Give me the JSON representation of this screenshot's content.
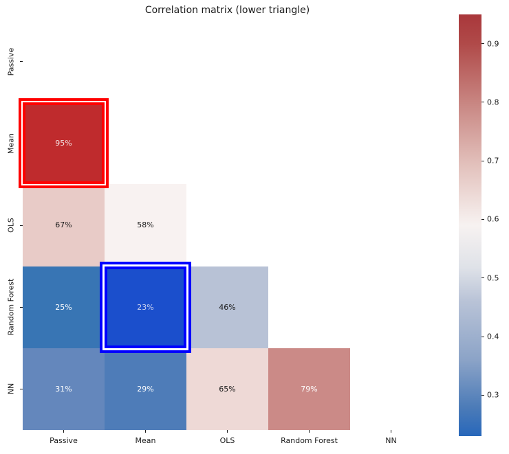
{
  "title": "Correlation matrix (lower triangle)",
  "colors": {
    "background": "#ffffff",
    "axis_text": "#1a1a1a",
    "tick_mark": "#1a1a1a",
    "highlight_max_box": "#ff0000",
    "highlight_min_box": "#0000ff"
  },
  "chart_data": {
    "type": "heatmap",
    "title": "Correlation matrix (lower triangle)",
    "categories": [
      "Passive",
      "Mean",
      "OLS",
      "Random Forest",
      "NN"
    ],
    "x_tick_labels": [
      "Passive",
      "Mean",
      "OLS",
      "Random Forest",
      "NN"
    ],
    "y_tick_labels": [
      "Passive",
      "Mean",
      "OLS",
      "Random Forest",
      "NN"
    ],
    "matrix_percent": [
      [
        null,
        null,
        null,
        null,
        null
      ],
      [
        95,
        null,
        null,
        null,
        null
      ],
      [
        67,
        58,
        null,
        null,
        null
      ],
      [
        25,
        23,
        46,
        null,
        null
      ],
      [
        31,
        29,
        65,
        79,
        null
      ]
    ],
    "cells": [
      {
        "row": 1,
        "col": 0,
        "row_label": "Mean",
        "col_label": "Passive",
        "label": "95%",
        "value": 0.95,
        "bg": "#bf2b2d",
        "fg": "#f3e2e2",
        "highlight": "red"
      },
      {
        "row": 2,
        "col": 0,
        "row_label": "OLS",
        "col_label": "Passive",
        "label": "67%",
        "value": 0.67,
        "bg": "#e8cbc7",
        "fg": "#1a1a1a",
        "highlight": null
      },
      {
        "row": 2,
        "col": 1,
        "row_label": "OLS",
        "col_label": "Mean",
        "label": "58%",
        "value": 0.58,
        "bg": "#f8f2f1",
        "fg": "#1a1a1a",
        "highlight": null
      },
      {
        "row": 3,
        "col": 0,
        "row_label": "Random Forest",
        "col_label": "Passive",
        "label": "25%",
        "value": 0.25,
        "bg": "#3875b4",
        "fg": "#ffffff",
        "highlight": null
      },
      {
        "row": 3,
        "col": 1,
        "row_label": "Random Forest",
        "col_label": "Mean",
        "label": "23%",
        "value": 0.23,
        "bg": "#1b4fcc",
        "fg": "#ccd3ef",
        "highlight": "blue"
      },
      {
        "row": 3,
        "col": 2,
        "row_label": "Random Forest",
        "col_label": "OLS",
        "label": "46%",
        "value": 0.46,
        "bg": "#b8c2d6",
        "fg": "#1a1a1a",
        "highlight": null
      },
      {
        "row": 4,
        "col": 0,
        "row_label": "NN",
        "col_label": "Passive",
        "label": "31%",
        "value": 0.31,
        "bg": "#6487bc",
        "fg": "#ffffff",
        "highlight": null
      },
      {
        "row": 4,
        "col": 1,
        "row_label": "NN",
        "col_label": "Mean",
        "label": "29%",
        "value": 0.29,
        "bg": "#4e7cb8",
        "fg": "#ffffff",
        "highlight": null
      },
      {
        "row": 4,
        "col": 2,
        "row_label": "NN",
        "col_label": "OLS",
        "label": "65%",
        "value": 0.65,
        "bg": "#eed9d6",
        "fg": "#1a1a1a",
        "highlight": null
      },
      {
        "row": 4,
        "col": 3,
        "row_label": "NN",
        "col_label": "Random Forest",
        "label": "79%",
        "value": 0.79,
        "bg": "#cb8a87",
        "fg": "#ffffff",
        "highlight": null
      }
    ],
    "colorbar": {
      "position": "right",
      "vmin": 0.23,
      "vmax": 0.95,
      "ticks": [
        0.9,
        0.8,
        0.7,
        0.6,
        0.5,
        0.4,
        0.3
      ],
      "tick_labels": [
        "0.9",
        "0.8",
        "0.7",
        "0.6",
        "0.5",
        "0.4",
        "0.3"
      ],
      "gradient": [
        {
          "pos": 0,
          "color": "#a9373b"
        },
        {
          "pos": 7,
          "color": "#b04a49"
        },
        {
          "pos": 22,
          "color": "#ca8a86"
        },
        {
          "pos": 36,
          "color": "#e3c2bd"
        },
        {
          "pos": 50,
          "color": "#f7f2f1"
        },
        {
          "pos": 60,
          "color": "#dfe2e8"
        },
        {
          "pos": 68,
          "color": "#b9c3d7"
        },
        {
          "pos": 82,
          "color": "#8ba3c7"
        },
        {
          "pos": 93,
          "color": "#4d7cb8"
        },
        {
          "pos": 100,
          "color": "#2767ba"
        }
      ]
    },
    "highlights": [
      {
        "row_label": "Mean",
        "col_label": "Passive",
        "label": "95%",
        "box_color": "#ff0000"
      },
      {
        "row_label": "Random Forest",
        "col_label": "Mean",
        "label": "23%",
        "box_color": "#0000ff"
      }
    ],
    "legend": null,
    "grid": false
  }
}
